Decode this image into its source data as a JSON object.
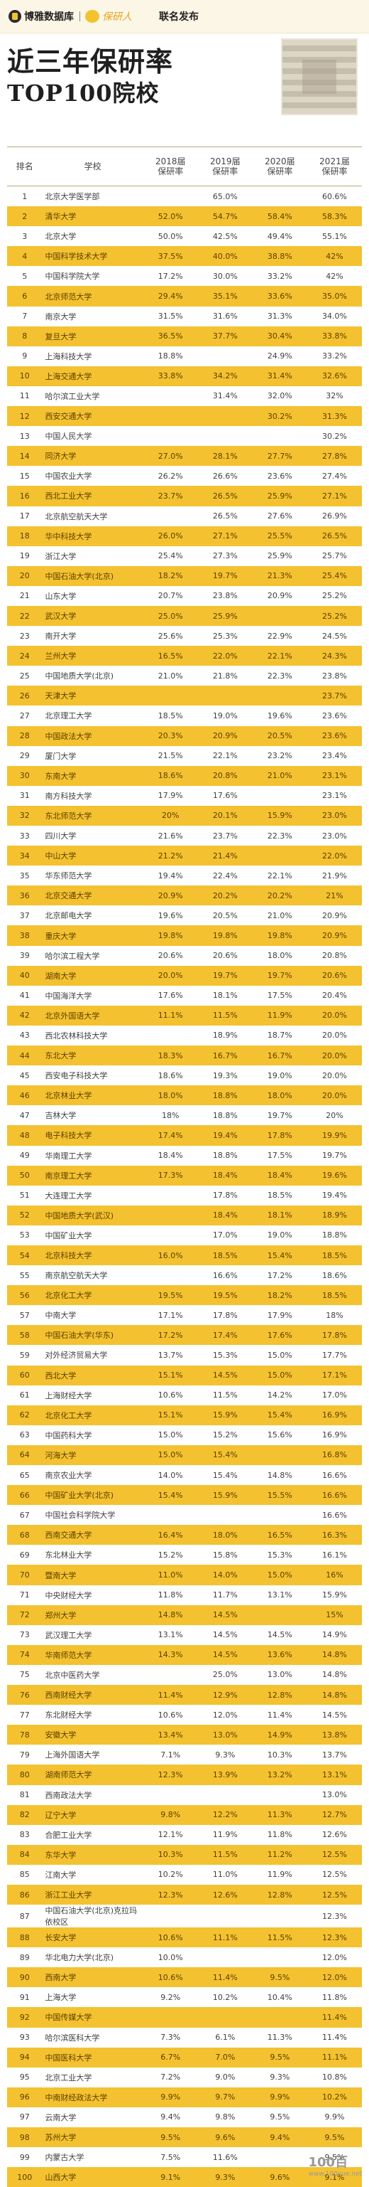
{
  "header": {
    "brand1": "博雅数据库",
    "brand2": "保研人",
    "brand3": "联名发布",
    "title_line1": "近三年保研率",
    "title_line2": "TOP100院校"
  },
  "table": {
    "columns": [
      "排名",
      "学校",
      "2018届\n保研率",
      "2019届\n保研率",
      "2020届\n保研率",
      "2021届\n保研率"
    ],
    "rows": [
      [
        "1",
        "北京大学医学部",
        "",
        "65.0%",
        "",
        "60.6%"
      ],
      [
        "2",
        "清华大学",
        "52.0%",
        "54.7%",
        "58.4%",
        "58.3%"
      ],
      [
        "3",
        "北京大学",
        "50.0%",
        "42.5%",
        "49.4%",
        "55.1%"
      ],
      [
        "4",
        "中国科学技术大学",
        "37.5%",
        "40.0%",
        "38.8%",
        "42%"
      ],
      [
        "5",
        "中国科学院大学",
        "17.2%",
        "30.0%",
        "33.2%",
        "42%"
      ],
      [
        "6",
        "北京师范大学",
        "29.4%",
        "35.1%",
        "33.6%",
        "35.0%"
      ],
      [
        "7",
        "南京大学",
        "31.5%",
        "31.6%",
        "31.3%",
        "34.0%"
      ],
      [
        "8",
        "复旦大学",
        "36.5%",
        "37.7%",
        "30.4%",
        "33.8%"
      ],
      [
        "9",
        "上海科技大学",
        "18.8%",
        "",
        "24.9%",
        "33.2%"
      ],
      [
        "10",
        "上海交通大学",
        "33.8%",
        "34.2%",
        "31.4%",
        "32.6%"
      ],
      [
        "11",
        "哈尔滨工业大学",
        "",
        "31.4%",
        "32.0%",
        "32%"
      ],
      [
        "12",
        "西安交通大学",
        "",
        "",
        "30.2%",
        "31.3%"
      ],
      [
        "13",
        "中国人民大学",
        "",
        "",
        "",
        "30.2%"
      ],
      [
        "14",
        "同济大学",
        "27.0%",
        "28.1%",
        "27.7%",
        "27.8%"
      ],
      [
        "15",
        "中国农业大学",
        "26.2%",
        "26.6%",
        "23.6%",
        "27.4%"
      ],
      [
        "16",
        "西北工业大学",
        "23.7%",
        "26.5%",
        "25.9%",
        "27.1%"
      ],
      [
        "17",
        "北京航空航天大学",
        "",
        "26.5%",
        "27.6%",
        "26.9%"
      ],
      [
        "18",
        "华中科技大学",
        "26.0%",
        "27.1%",
        "25.5%",
        "26.5%"
      ],
      [
        "19",
        "浙江大学",
        "25.4%",
        "27.3%",
        "25.9%",
        "25.7%"
      ],
      [
        "20",
        "中国石油大学(北京)",
        "18.2%",
        "19.7%",
        "21.3%",
        "25.4%"
      ],
      [
        "21",
        "山东大学",
        "20.7%",
        "23.8%",
        "20.9%",
        "25.2%"
      ],
      [
        "22",
        "武汉大学",
        "25.0%",
        "25.9%",
        "",
        "25.2%"
      ],
      [
        "23",
        "南开大学",
        "25.6%",
        "25.3%",
        "22.9%",
        "24.5%"
      ],
      [
        "24",
        "兰州大学",
        "16.5%",
        "22.0%",
        "22.1%",
        "24.3%"
      ],
      [
        "25",
        "中国地质大学(北京)",
        "21.0%",
        "21.8%",
        "22.3%",
        "23.8%"
      ],
      [
        "26",
        "天津大学",
        "",
        "",
        "",
        "23.7%"
      ],
      [
        "27",
        "北京理工大学",
        "18.5%",
        "19.0%",
        "19.6%",
        "23.6%"
      ],
      [
        "28",
        "中国政法大学",
        "20.3%",
        "20.9%",
        "20.5%",
        "23.6%"
      ],
      [
        "29",
        "厦门大学",
        "21.5%",
        "22.1%",
        "23.2%",
        "23.4%"
      ],
      [
        "30",
        "东南大学",
        "18.6%",
        "20.8%",
        "21.0%",
        "23.1%"
      ],
      [
        "31",
        "南方科技大学",
        "17.9%",
        "17.6%",
        "",
        "23.1%"
      ],
      [
        "32",
        "东北师范大学",
        "20%",
        "20.1%",
        "15.9%",
        "23.0%"
      ],
      [
        "33",
        "四川大学",
        "21.6%",
        "23.7%",
        "22.3%",
        "23.0%"
      ],
      [
        "34",
        "中山大学",
        "21.2%",
        "21.4%",
        "",
        "22.0%"
      ],
      [
        "35",
        "华东师范大学",
        "19.4%",
        "22.4%",
        "22.1%",
        "21.9%"
      ],
      [
        "36",
        "北京交通大学",
        "20.9%",
        "20.2%",
        "20.2%",
        "21%"
      ],
      [
        "37",
        "北京邮电大学",
        "19.6%",
        "20.5%",
        "21.0%",
        "20.9%"
      ],
      [
        "38",
        "重庆大学",
        "19.8%",
        "19.8%",
        "19.8%",
        "20.9%"
      ],
      [
        "39",
        "哈尔滨工程大学",
        "20.6%",
        "20.6%",
        "18.0%",
        "20.8%"
      ],
      [
        "40",
        "湖南大学",
        "20.0%",
        "19.7%",
        "19.7%",
        "20.6%"
      ],
      [
        "41",
        "中国海洋大学",
        "17.6%",
        "18.1%",
        "17.5%",
        "20.4%"
      ],
      [
        "42",
        "北京外国语大学",
        "11.1%",
        "11.5%",
        "11.9%",
        "20.0%"
      ],
      [
        "43",
        "西北农林科技大学",
        "",
        "18.9%",
        "18.7%",
        "20.0%"
      ],
      [
        "44",
        "东北大学",
        "18.3%",
        "16.7%",
        "16.7%",
        "20.0%"
      ],
      [
        "45",
        "西安电子科技大学",
        "18.6%",
        "19.3%",
        "19.0%",
        "20.0%"
      ],
      [
        "46",
        "北京林业大学",
        "18.0%",
        "18.8%",
        "18.0%",
        "20.0%"
      ],
      [
        "47",
        "吉林大学",
        "18%",
        "18.8%",
        "19.7%",
        "20%"
      ],
      [
        "48",
        "电子科技大学",
        "17.4%",
        "19.4%",
        "17.8%",
        "19.9%"
      ],
      [
        "49",
        "华南理工大学",
        "18.4%",
        "18.8%",
        "17.5%",
        "19.7%"
      ],
      [
        "50",
        "南京理工大学",
        "17.3%",
        "18.4%",
        "18.4%",
        "19.6%"
      ],
      [
        "51",
        "大连理工大学",
        "",
        "17.8%",
        "18.5%",
        "19.4%"
      ],
      [
        "52",
        "中国地质大学(武汉)",
        "",
        "18.4%",
        "18.1%",
        "18.9%"
      ],
      [
        "53",
        "中国矿业大学",
        "",
        "17.0%",
        "19.0%",
        "18.8%"
      ],
      [
        "54",
        "北京科技大学",
        "16.0%",
        "18.5%",
        "15.4%",
        "18.5%"
      ],
      [
        "55",
        "南京航空航天大学",
        "",
        "16.6%",
        "17.2%",
        "18.6%"
      ],
      [
        "56",
        "北京化工大学",
        "19.5%",
        "19.5%",
        "18.2%",
        "18.5%"
      ],
      [
        "57",
        "中南大学",
        "17.1%",
        "17.8%",
        "17.9%",
        "18%"
      ],
      [
        "58",
        "中国石油大学(华东)",
        "17.2%",
        "17.4%",
        "17.6%",
        "17.8%"
      ],
      [
        "59",
        "对外经济贸易大学",
        "13.7%",
        "15.3%",
        "15.0%",
        "17.7%"
      ],
      [
        "60",
        "西北大学",
        "15.1%",
        "14.5%",
        "15.0%",
        "17.1%"
      ],
      [
        "61",
        "上海财经大学",
        "10.6%",
        "11.5%",
        "14.2%",
        "17.0%"
      ],
      [
        "62",
        "北京化工大学",
        "15.1%",
        "15.9%",
        "15.4%",
        "16.9%"
      ],
      [
        "63",
        "中国药科大学",
        "15.0%",
        "15.2%",
        "15.6%",
        "16.9%"
      ],
      [
        "64",
        "河海大学",
        "15.0%",
        "15.4%",
        "",
        "16.8%"
      ],
      [
        "65",
        "南京农业大学",
        "14.0%",
        "15.4%",
        "14.8%",
        "16.6%"
      ],
      [
        "66",
        "中国矿业大学(北京)",
        "15.4%",
        "15.9%",
        "15.5%",
        "16.6%"
      ],
      [
        "67",
        "中国社会科学院大学",
        "",
        "",
        "",
        "16.6%"
      ],
      [
        "68",
        "西南交通大学",
        "16.4%",
        "18.0%",
        "16.5%",
        "16.3%"
      ],
      [
        "69",
        "东北林业大学",
        "15.2%",
        "15.8%",
        "15.3%",
        "16.1%"
      ],
      [
        "70",
        "暨南大学",
        "11.0%",
        "14.0%",
        "15.0%",
        "16%"
      ],
      [
        "71",
        "中央财经大学",
        "11.8%",
        "11.7%",
        "13.1%",
        "15.9%"
      ],
      [
        "72",
        "郑州大学",
        "14.8%",
        "14.5%",
        "",
        "15%"
      ],
      [
        "73",
        "武汉理工大学",
        "13.1%",
        "14.5%",
        "14.5%",
        "14.9%"
      ],
      [
        "74",
        "华南师范大学",
        "14.3%",
        "14.5%",
        "13.6%",
        "14.8%"
      ],
      [
        "75",
        "北京中医药大学",
        "",
        "25.0%",
        "13.0%",
        "14.8%"
      ],
      [
        "76",
        "西南财经大学",
        "11.4%",
        "12.9%",
        "12.8%",
        "14.8%"
      ],
      [
        "77",
        "东北财经大学",
        "10.6%",
        "12.0%",
        "11.4%",
        "14.5%"
      ],
      [
        "78",
        "安徽大学",
        "13.4%",
        "13.0%",
        "14.9%",
        "13.8%"
      ],
      [
        "79",
        "上海外国语大学",
        "7.1%",
        "9.3%",
        "10.3%",
        "13.7%"
      ],
      [
        "80",
        "湖南师范大学",
        "12.3%",
        "13.9%",
        "13.2%",
        "13.1%"
      ],
      [
        "81",
        "西南政法大学",
        "",
        "",
        "",
        "13.0%"
      ],
      [
        "82",
        "辽宁大学",
        "9.8%",
        "12.2%",
        "11.3%",
        "12.7%"
      ],
      [
        "83",
        "合肥工业大学",
        "12.1%",
        "11.9%",
        "11.8%",
        "12.6%"
      ],
      [
        "84",
        "东华大学",
        "10.3%",
        "11.5%",
        "11.2%",
        "12.5%"
      ],
      [
        "85",
        "江南大学",
        "10.2%",
        "11.0%",
        "11.9%",
        "12.5%"
      ],
      [
        "86",
        "浙江工业大学",
        "12.3%",
        "12.6%",
        "12.8%",
        "12.5%"
      ],
      [
        "87",
        "中国石油大学(北京)克拉玛依校区",
        "",
        "",
        "",
        "12.3%"
      ],
      [
        "88",
        "长安大学",
        "10.6%",
        "11.1%",
        "11.5%",
        "12.3%"
      ],
      [
        "89",
        "华北电力大学(北京)",
        "10.0%",
        "",
        "",
        "12.0%"
      ],
      [
        "90",
        "西南大学",
        "10.6%",
        "11.4%",
        "9.5%",
        "12.0%"
      ],
      [
        "91",
        "上海大学",
        "9.2%",
        "10.2%",
        "10.4%",
        "11.8%"
      ],
      [
        "92",
        "中国传媒大学",
        "",
        "",
        "",
        "11.4%"
      ],
      [
        "93",
        "哈尔滨医科大学",
        "7.3%",
        "6.1%",
        "11.3%",
        "11.4%"
      ],
      [
        "94",
        "中国医科大学",
        "6.7%",
        "7.0%",
        "9.5%",
        "11.1%"
      ],
      [
        "95",
        "北京工业大学",
        "7.2%",
        "9.0%",
        "9.3%",
        "10.8%"
      ],
      [
        "96",
        "中南财经政法大学",
        "9.9%",
        "9.7%",
        "9.9%",
        "10.2%"
      ],
      [
        "97",
        "云南大学",
        "9.4%",
        "9.8%",
        "9.5%",
        "9.9%"
      ],
      [
        "98",
        "苏州大学",
        "9.5%",
        "9.6%",
        "9.4%",
        "9.5%"
      ],
      [
        "99",
        "内蒙古大学",
        "7.5%",
        "11.6%",
        "",
        "9.5%"
      ],
      [
        "100",
        "山西大学",
        "9.1%",
        "9.3%",
        "9.6%",
        "9.1%"
      ]
    ]
  },
  "watermark": {
    "main": "100百",
    "sub": "www.100xue.net"
  },
  "colors": {
    "stripe": "#f4c230",
    "accent": "#e7a41f"
  },
  "icons": [
    "boya-logo-icon",
    "baoyanren-logo-icon",
    "qr-code-icon"
  ]
}
